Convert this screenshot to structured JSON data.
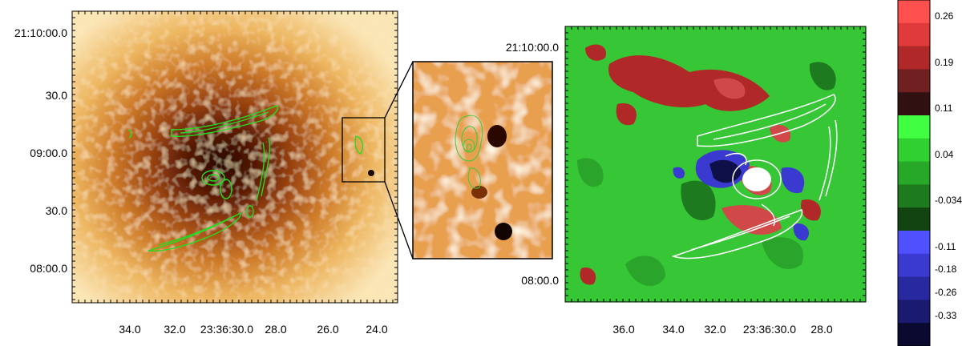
{
  "left_panel": {
    "y_ticks": [
      "21:10:00.0",
      "30.0",
      "09:00.0",
      "30.0",
      "08:00.0"
    ],
    "x_ticks": [
      "34.0",
      "32.0",
      "23:36:30.0",
      "28.0",
      "26.0",
      "24.0"
    ]
  },
  "right_panel": {
    "y_ticks": [
      "21:10:00.0",
      "08:00.0"
    ],
    "x_ticks": [
      "36.0",
      "34.0",
      "32.0",
      "23:36:30.0",
      "28.0"
    ]
  },
  "colorbar": {
    "labels": [
      "0.26",
      "0.19",
      "0.11",
      "0.04",
      "-0.034",
      "-0.11",
      "-0.18",
      "-0.26",
      "-0.33"
    ],
    "colors": [
      "#ff5050",
      "#e03a3a",
      "#b02828",
      "#702020",
      "#301010",
      "#40ff40",
      "#30d030",
      "#28a828",
      "#1e7a1e",
      "#124412",
      "#5050ff",
      "#3a3ad0",
      "#2828a0",
      "#1a1a70",
      "#0a0a30"
    ]
  },
  "colors": {
    "contour_green": "#22dd22",
    "contour_white": "#ffffff",
    "map_green": "#36c636",
    "map_red": "#d04848"
  }
}
